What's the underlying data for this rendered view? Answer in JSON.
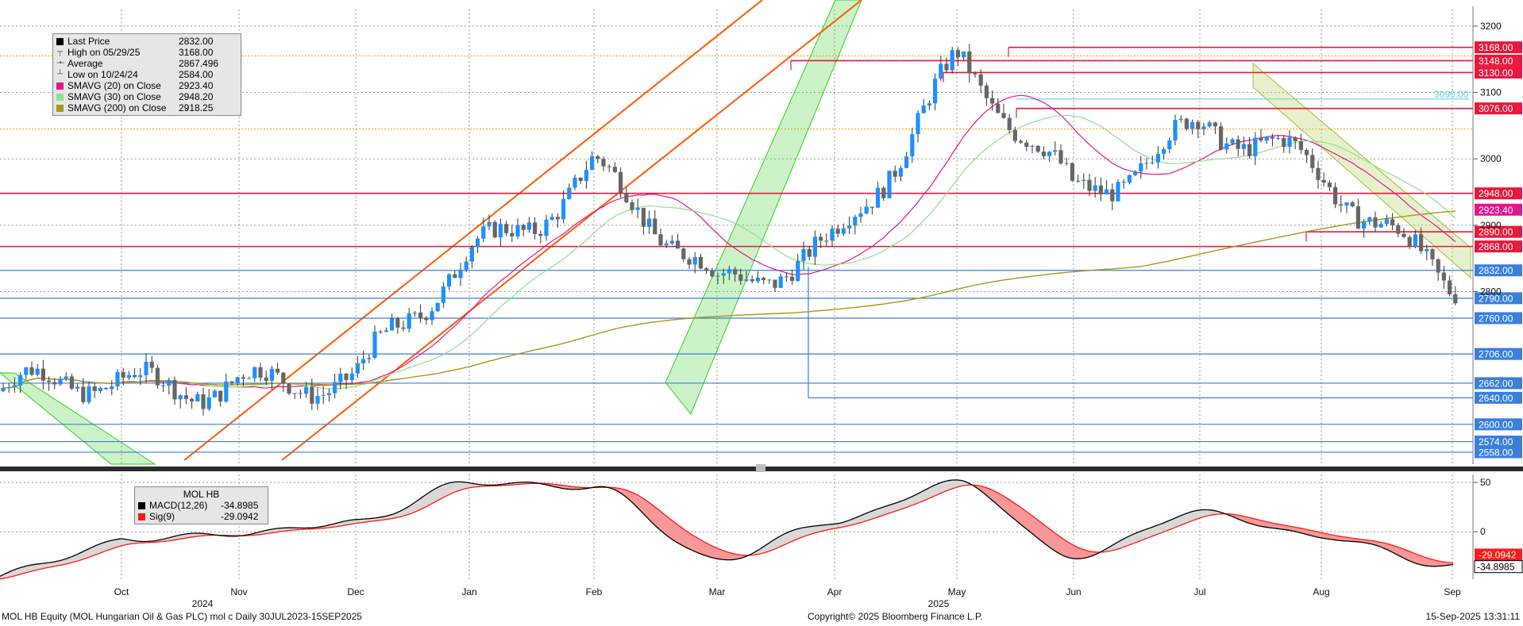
{
  "legend_main": {
    "rows": [
      {
        "label": "Last Price",
        "value": "2832.00",
        "marker": "square",
        "color": "#000000"
      },
      {
        "label": "High on 05/29/25",
        "value": "3168.00",
        "marker": "high"
      },
      {
        "label": "Average",
        "value": "2867.496",
        "marker": "avg"
      },
      {
        "label": "Low on 10/24/24",
        "value": "2584.00",
        "marker": "low"
      },
      {
        "label": "SMAVG (20)  on Close",
        "value": "2923.40",
        "marker": "square",
        "color": "#e4168e"
      },
      {
        "label": "SMAVG (30)  on Close",
        "value": "2948.20",
        "marker": "square",
        "color": "#8fe08a"
      },
      {
        "label": "SMAVG (200)  on Close",
        "value": "2918.25",
        "marker": "square",
        "color": "#a39a1c"
      }
    ]
  },
  "legend_macd": {
    "title": "MOL HB",
    "rows": [
      {
        "label": "MACD(12,26)",
        "value": "-34.8985",
        "color": "#000000"
      },
      {
        "label": "Sig(9)",
        "value": "-29.0942",
        "color": "#ff1a1a"
      }
    ]
  },
  "footer": {
    "left": "MOL HB Equity (MOL Hungarian Oil & Gas PLC) mol c  Daily 30JUL2023-15SEP2025",
    "center": "Copyright© 2025 Bloomberg Finance L.P.",
    "right": "15-Sep-2025 13:31:11"
  },
  "chart_data": {
    "type": "candlestick",
    "x_labels": [
      "Oct",
      "Nov",
      "Dec",
      "Jan",
      "Feb",
      "Mar",
      "Apr",
      "May",
      "Jun",
      "Jul",
      "Aug",
      "Sep"
    ],
    "year_labels": [
      "2024",
      "2025"
    ],
    "price_axis": {
      "ticks": [
        3200,
        3100,
        3000,
        2900,
        2800
      ],
      "ylim": [
        2540,
        3225
      ]
    },
    "macd_axis": {
      "ticks": [
        50,
        0
      ],
      "ylim": [
        -48,
        58
      ]
    },
    "colors": {
      "up": "#1e90ff",
      "down": "#666666",
      "hline_red": "#e8193c",
      "hline_blue": "#3a7fdc",
      "trend_orange": "#ff5a00",
      "channel_green": "#2ed11f",
      "sma20": "#e4168e",
      "sma30": "#8fe08a",
      "sma200": "#a39a1c",
      "macd": "#000000",
      "signal": "#ff1a1a",
      "spread_red": "#f79797",
      "spread_gray": "#d8d8d8"
    },
    "price_series_anchors": [
      {
        "month": "Oct",
        "price": 2650
      },
      {
        "month": "Nov",
        "price": 2680
      },
      {
        "month": "Dec",
        "price": 2650
      },
      {
        "month": "Jan",
        "price": 2860
      },
      {
        "month": "Feb",
        "price": 2990
      },
      {
        "month": "Mar",
        "price": 2790
      },
      {
        "month": "Apr",
        "price": 2890
      },
      {
        "month": "May",
        "price": 3130
      },
      {
        "month": "Jun",
        "price": 2950
      },
      {
        "month": "Jul",
        "price": 3060
      },
      {
        "month": "Aug",
        "price": 2960
      },
      {
        "month": "Sep",
        "price": 2832
      }
    ],
    "horizontal_levels": [
      {
        "value": 3168,
        "label": "3168.00",
        "color": "red"
      },
      {
        "value": 3148,
        "label": "3148.00",
        "color": "red"
      },
      {
        "value": 3130,
        "label": "3130.00",
        "color": "red"
      },
      {
        "value": 3076,
        "label": "3076.00",
        "color": "red"
      },
      {
        "value": 2948,
        "label": "2948.00",
        "color": "red"
      },
      {
        "value": 2890,
        "label": "2890.00",
        "color": "red"
      },
      {
        "value": 2868,
        "label": "2868.00",
        "color": "red"
      },
      {
        "value": 2832,
        "label": "2832.00",
        "color": "blue"
      },
      {
        "value": 2790,
        "label": "2790.00",
        "color": "blue"
      },
      {
        "value": 2760,
        "label": "2760.00",
        "color": "blue"
      },
      {
        "value": 2706,
        "label": "2706.00",
        "color": "blue"
      },
      {
        "value": 2662,
        "label": "2662.00",
        "color": "blue"
      },
      {
        "value": 2640,
        "label": "2640.00",
        "color": "blue"
      },
      {
        "value": 2600,
        "label": "2600.00",
        "color": "blue"
      },
      {
        "value": 2574,
        "label": "2574.00",
        "color": "blue"
      },
      {
        "value": 2558,
        "label": "2558.00",
        "color": "blue"
      }
    ],
    "inline_level": {
      "value": 3090,
      "label": "3090.00"
    },
    "axis_badges": [
      {
        "value": 2923.4,
        "label": "2923.40",
        "color": "#e4168e"
      }
    ],
    "macd_labels": [
      {
        "value": -34.8985,
        "label": "-34.8985",
        "color": "#000000"
      },
      {
        "value": -29.0942,
        "label": "-29.0942",
        "color": "#ff1a1a"
      }
    ],
    "macd_series_anchors": [
      {
        "month": "Oct",
        "macd": -8
      },
      {
        "month": "Nov",
        "macd": -2
      },
      {
        "month": "Dec",
        "macd": 10
      },
      {
        "month": "Jan",
        "macd": 50
      },
      {
        "month": "Feb",
        "macd": 45
      },
      {
        "month": "Mar",
        "macd": -28
      },
      {
        "month": "Apr",
        "macd": 10
      },
      {
        "month": "May",
        "macd": 50
      },
      {
        "month": "Jun",
        "macd": -25
      },
      {
        "month": "Jul",
        "macd": 20
      },
      {
        "month": "Aug",
        "macd": -5
      },
      {
        "month": "Sep",
        "macd": -35
      }
    ]
  }
}
